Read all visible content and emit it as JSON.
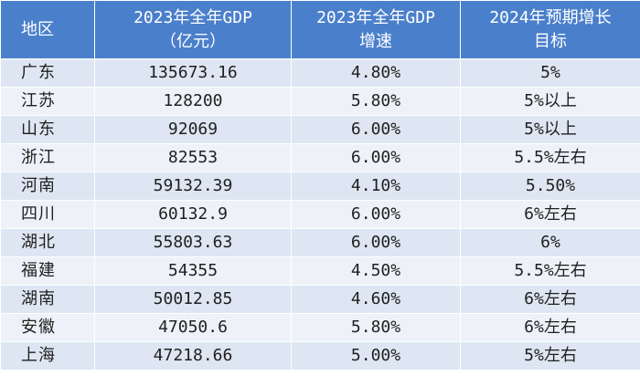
{
  "table": {
    "headers": {
      "region": "地区",
      "gdp_line1": "2023年全年GDP",
      "gdp_line2": "（亿元）",
      "growth_line1": "2023年全年GDP",
      "growth_line2": "增速",
      "target_line1": "2024年预期增长",
      "target_line2": "目标"
    },
    "rows": [
      {
        "region": "广东",
        "gdp": "135673.16",
        "growth": "4.80%",
        "target": "5%"
      },
      {
        "region": "江苏",
        "gdp": "128200",
        "growth": "5.80%",
        "target": "5%以上"
      },
      {
        "region": "山东",
        "gdp": "92069",
        "growth": "6.00%",
        "target": "5%以上"
      },
      {
        "region": "浙江",
        "gdp": "82553",
        "growth": "6.00%",
        "target": "5.5%左右"
      },
      {
        "region": "河南",
        "gdp": "59132.39",
        "growth": "4.10%",
        "target": "5.50%"
      },
      {
        "region": "四川",
        "gdp": "60132.9",
        "growth": "6.00%",
        "target": "6%左右"
      },
      {
        "region": "湖北",
        "gdp": "55803.63",
        "growth": "6.00%",
        "target": "6%"
      },
      {
        "region": "福建",
        "gdp": "54355",
        "growth": "4.50%",
        "target": "5.5%左右"
      },
      {
        "region": "湖南",
        "gdp": "50012.85",
        "growth": "4.60%",
        "target": "6%左右"
      },
      {
        "region": "安徽",
        "gdp": "47050.6",
        "growth": "5.80%",
        "target": "6%左右"
      },
      {
        "region": "上海",
        "gdp": "47218.66",
        "growth": "5.00%",
        "target": "5%左右"
      }
    ],
    "colors": {
      "header_bg": "#4a7fcb",
      "row_odd": "#dde6f2",
      "row_even": "#eef2f8"
    }
  }
}
